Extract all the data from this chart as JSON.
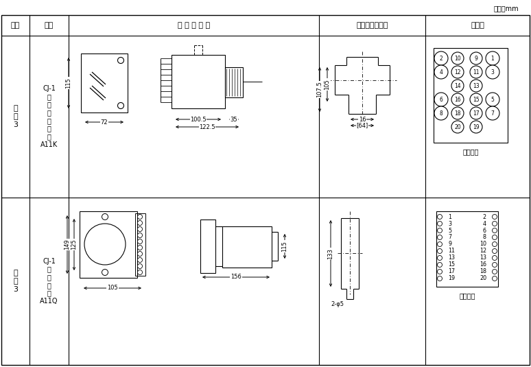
{
  "bg": "#ffffff",
  "lc": "#000000",
  "unit": "单位：mm",
  "headers": [
    "图号",
    "结构",
    "外 形 尺 寸 图",
    "安装开孔尺寸图",
    "端子图"
  ],
  "row1_fig": "附\n图\n3",
  "row1_struct": "CJ-1\n嵌\n入\n式\n后\n接\n线\nA11K",
  "row2_fig": "附\n图\n3",
  "row2_struct": "CJ-1\n板\n前\n接\n线\nA11Q",
  "terminal1_labels": [
    [
      "2",
      "10",
      "9",
      "1"
    ],
    [
      "4",
      "12",
      "11",
      "3"
    ],
    [
      "",
      "14",
      "13",
      ""
    ],
    [
      "6",
      "16",
      "15",
      "5"
    ],
    [
      "8",
      "18",
      "17",
      "7"
    ],
    [
      "",
      "20",
      "19",
      ""
    ]
  ],
  "terminal2_left": [
    "1",
    "3",
    "5",
    "7",
    "9",
    "11",
    "13",
    "15",
    "17",
    "19"
  ],
  "terminal2_right": [
    "2",
    "4",
    "6",
    "8",
    "10",
    "12",
    "13",
    "16",
    "18",
    "20"
  ],
  "dim_r1_front_h": "115",
  "dim_r1_front_w": "72",
  "dim_r1_side_a": "100.5",
  "dim_r1_side_b": "35",
  "dim_r1_side_tot": "122.5",
  "dim_r1_hole_h1": "107.5",
  "dim_r1_hole_h2": "105",
  "dim_r1_hole_w1": "16",
  "dim_r1_hole_w2": "[64]",
  "dim_r2_front_h1": "149",
  "dim_r2_front_h2": "125",
  "dim_r2_front_w": "105",
  "dim_r2_side_h": "115",
  "dim_r2_side_w": "156",
  "dim_r2_hole_h": "133",
  "dim_r2_hole_d": "2-φ5",
  "back_view": "（背视）",
  "front_view": "（前视）"
}
